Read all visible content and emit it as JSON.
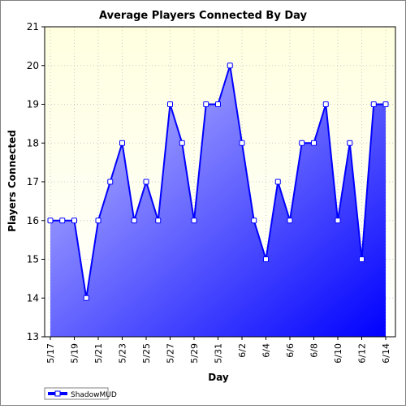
{
  "chart_data": {
    "type": "area",
    "title": "Average Players Connected By Day",
    "xlabel": "Day",
    "ylabel": "Players Connected",
    "ylim": [
      13,
      21
    ],
    "yticks": [
      13,
      14,
      15,
      16,
      17,
      18,
      19,
      20,
      21
    ],
    "x": [
      "5/17",
      "5/18",
      "5/19",
      "5/20",
      "5/21",
      "5/22",
      "5/23",
      "5/24",
      "5/25",
      "5/26",
      "5/27",
      "5/28",
      "5/29",
      "5/30",
      "5/31",
      "6/1",
      "6/2",
      "6/3",
      "6/4",
      "6/5",
      "6/6",
      "6/7",
      "6/8",
      "6/9",
      "6/10",
      "6/11",
      "6/12",
      "6/13",
      "6/14"
    ],
    "xtick_labels": [
      "5/17",
      "5/19",
      "5/21",
      "5/23",
      "5/25",
      "5/27",
      "5/29",
      "5/31",
      "6/2",
      "6/4",
      "6/6",
      "6/8",
      "6/10",
      "6/12",
      "6/14"
    ],
    "series": [
      {
        "name": "ShadowMUD",
        "values": [
          16,
          16,
          16,
          14,
          16,
          17,
          18,
          16,
          17,
          16,
          19,
          18,
          16,
          19,
          19,
          20,
          18,
          16,
          15,
          17,
          16,
          18,
          18,
          19,
          16,
          18,
          15,
          19,
          19
        ]
      }
    ],
    "grid": true,
    "legend": "bottom-left",
    "colors": {
      "plot_bg_top": "#ffffe0",
      "plot_bg_bottom": "#ffffff",
      "line": "#0000ff",
      "area_light": "#c8c8ff",
      "area_dark": "#0000ff",
      "marker_fill": "#ffffff",
      "grid": "#c8c8c8",
      "axis": "#000000"
    }
  }
}
